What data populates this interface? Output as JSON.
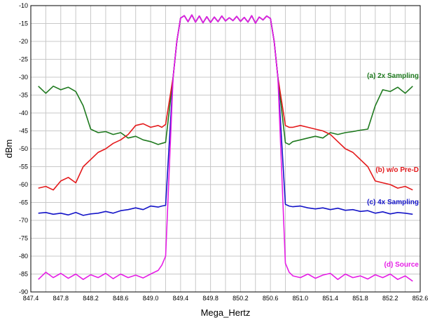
{
  "chart_data": {
    "type": "line",
    "title": "",
    "xlabel": "Mega_Hertz",
    "ylabel": "dBm",
    "xlim": [
      847.4,
      852.6
    ],
    "ylim": [
      -90,
      -10
    ],
    "x_ticks": [
      "847.4",
      "847.6",
      "847.8",
      "848.0",
      "848.2",
      "848.4",
      "848.6",
      "848.8",
      "849.0",
      "849.2",
      "849.4",
      "849.6",
      "849.8",
      "850.0",
      "850.2",
      "850.4",
      "850.6",
      "850.8",
      "851.0",
      "851.2",
      "851.4",
      "851.6",
      "851.8",
      "852.0",
      "852.2",
      "852.4",
      "852.6"
    ],
    "x_tick_labels_shown": [
      "847.4",
      "847.8",
      "848.2",
      "848.6",
      "849.0",
      "849.4",
      "849.8",
      "850.2",
      "850.6",
      "851.0",
      "851.4",
      "851.8",
      "852.2",
      "852.6"
    ],
    "y_ticks": [
      -10,
      -15,
      -20,
      -25,
      -30,
      -35,
      -40,
      -45,
      -50,
      -55,
      -60,
      -65,
      -70,
      -75,
      -80,
      -85,
      -90
    ],
    "grid": true,
    "legend": "inline labels at right",
    "inband": {
      "x": [
        849.3,
        849.35,
        849.4,
        849.45,
        849.5,
        849.55,
        849.6,
        849.65,
        849.7,
        849.75,
        849.8,
        849.85,
        849.9,
        849.95,
        850.0,
        850.05,
        850.1,
        850.15,
        850.2,
        850.25,
        850.3,
        850.35,
        850.4,
        850.45,
        850.5,
        850.55,
        850.6,
        850.65,
        850.7
      ],
      "y": [
        -30,
        -20,
        -13.5,
        -12.8,
        -14.5,
        -12.6,
        -14.6,
        -12.9,
        -14.8,
        -13.1,
        -14.7,
        -13.2,
        -14.5,
        -12.9,
        -14.3,
        -13.4,
        -14.2,
        -13.0,
        -14.4,
        -13.3,
        -14.6,
        -12.8,
        -14.9,
        -13.2,
        -14.0,
        -12.9,
        -13.6,
        -20,
        -30
      ]
    },
    "series": [
      {
        "name": "(a) 2x Sampling",
        "color": "#1f7a1f",
        "left_x": [
          847.5,
          847.6,
          847.7,
          847.8,
          847.9,
          848.0,
          848.1,
          848.2,
          848.3,
          848.4,
          848.5,
          848.6,
          848.7,
          848.8,
          848.9,
          849.0,
          849.1,
          849.15,
          849.2
        ],
        "left_y": [
          -32.5,
          -34.5,
          -32.5,
          -33.5,
          -32.8,
          -34,
          -38,
          -44.5,
          -45.5,
          -45.2,
          -46,
          -45.5,
          -47,
          -46.5,
          -47.5,
          -48,
          -48.8,
          -48.5,
          -48.2
        ],
        "right_x": [
          850.8,
          850.85,
          850.9,
          851.0,
          851.1,
          851.2,
          851.3,
          851.4,
          851.5,
          851.6,
          851.7,
          851.8,
          851.9,
          852.0,
          852.1,
          852.2,
          852.3,
          852.4,
          852.5
        ],
        "right_y": [
          -48.3,
          -48.8,
          -48,
          -47.5,
          -47,
          -46.5,
          -47,
          -45.5,
          -46,
          -45.5,
          -45.2,
          -44.8,
          -44.5,
          -38,
          -33.5,
          -34,
          -32.8,
          -34.5,
          -32.5
        ]
      },
      {
        "name": "(b) w/o Pre-D",
        "color": "#e41a1c",
        "left_x": [
          847.5,
          847.6,
          847.7,
          847.8,
          847.9,
          848.0,
          848.1,
          848.2,
          848.3,
          848.4,
          848.5,
          848.6,
          848.7,
          848.8,
          848.9,
          849.0,
          849.1,
          849.15,
          849.2
        ],
        "left_y": [
          -61,
          -60.5,
          -61.5,
          -59,
          -58,
          -59.5,
          -55,
          -53,
          -51,
          -50,
          -48.5,
          -47.5,
          -46,
          -43.5,
          -43,
          -44,
          -43.5,
          -44,
          -43.2
        ],
        "right_x": [
          850.8,
          850.85,
          850.9,
          851.0,
          851.1,
          851.2,
          851.3,
          851.4,
          851.5,
          851.6,
          851.7,
          851.8,
          851.9,
          852.0,
          852.1,
          852.2,
          852.3,
          852.4,
          852.5
        ],
        "right_y": [
          -43.5,
          -44,
          -44,
          -43.5,
          -44,
          -44.5,
          -45,
          -46,
          -48,
          -50,
          -51,
          -53,
          -55,
          -59,
          -59.5,
          -60,
          -61,
          -60.5,
          -61.5
        ]
      },
      {
        "name": "(c) 4x Sampling",
        "color": "#1414c8",
        "left_x": [
          847.5,
          847.6,
          847.7,
          847.8,
          847.9,
          848.0,
          848.1,
          848.2,
          848.3,
          848.4,
          848.5,
          848.6,
          848.7,
          848.8,
          848.9,
          849.0,
          849.1,
          849.15,
          849.2
        ],
        "left_y": [
          -68,
          -67.8,
          -68.3,
          -68,
          -68.5,
          -67.8,
          -68.6,
          -68.2,
          -68,
          -67.5,
          -68,
          -67.3,
          -67,
          -66.5,
          -67,
          -66,
          -66.3,
          -66,
          -65.8
        ],
        "right_x": [
          850.8,
          850.85,
          850.9,
          851.0,
          851.1,
          851.2,
          851.3,
          851.4,
          851.5,
          851.6,
          851.7,
          851.8,
          851.9,
          852.0,
          852.1,
          852.2,
          852.3,
          852.4,
          852.5
        ],
        "right_y": [
          -65.5,
          -66,
          -66.2,
          -66,
          -66.5,
          -66.8,
          -66.5,
          -67,
          -66.6,
          -67.2,
          -67,
          -67.5,
          -67.3,
          -68,
          -67.6,
          -68.2,
          -67.8,
          -68,
          -68.3
        ]
      },
      {
        "name": "(d) Source",
        "color": "#e61ee6",
        "left_x": [
          847.5,
          847.6,
          847.7,
          847.8,
          847.9,
          848.0,
          848.1,
          848.2,
          848.3,
          848.4,
          848.5,
          848.6,
          848.7,
          848.8,
          848.9,
          849.0,
          849.1,
          849.15,
          849.2
        ],
        "left_y": [
          -86.5,
          -84.5,
          -86,
          -84.8,
          -86.2,
          -85,
          -86.5,
          -85.2,
          -86,
          -84.8,
          -86.3,
          -85,
          -86,
          -85.3,
          -86.1,
          -85,
          -84,
          -82.5,
          -80
        ],
        "right_x": [
          850.8,
          850.85,
          850.9,
          851.0,
          851.1,
          851.2,
          851.3,
          851.4,
          851.5,
          851.6,
          851.7,
          851.8,
          851.9,
          852.0,
          852.1,
          852.2,
          852.3,
          852.4,
          852.5
        ],
        "right_y": [
          -82,
          -84.5,
          -85.5,
          -86,
          -85,
          -86.2,
          -85.3,
          -84.8,
          -86.5,
          -85,
          -86,
          -85.5,
          -86.4,
          -85.2,
          -86,
          -85,
          -86.5,
          -85.5,
          -87
        ]
      }
    ]
  }
}
